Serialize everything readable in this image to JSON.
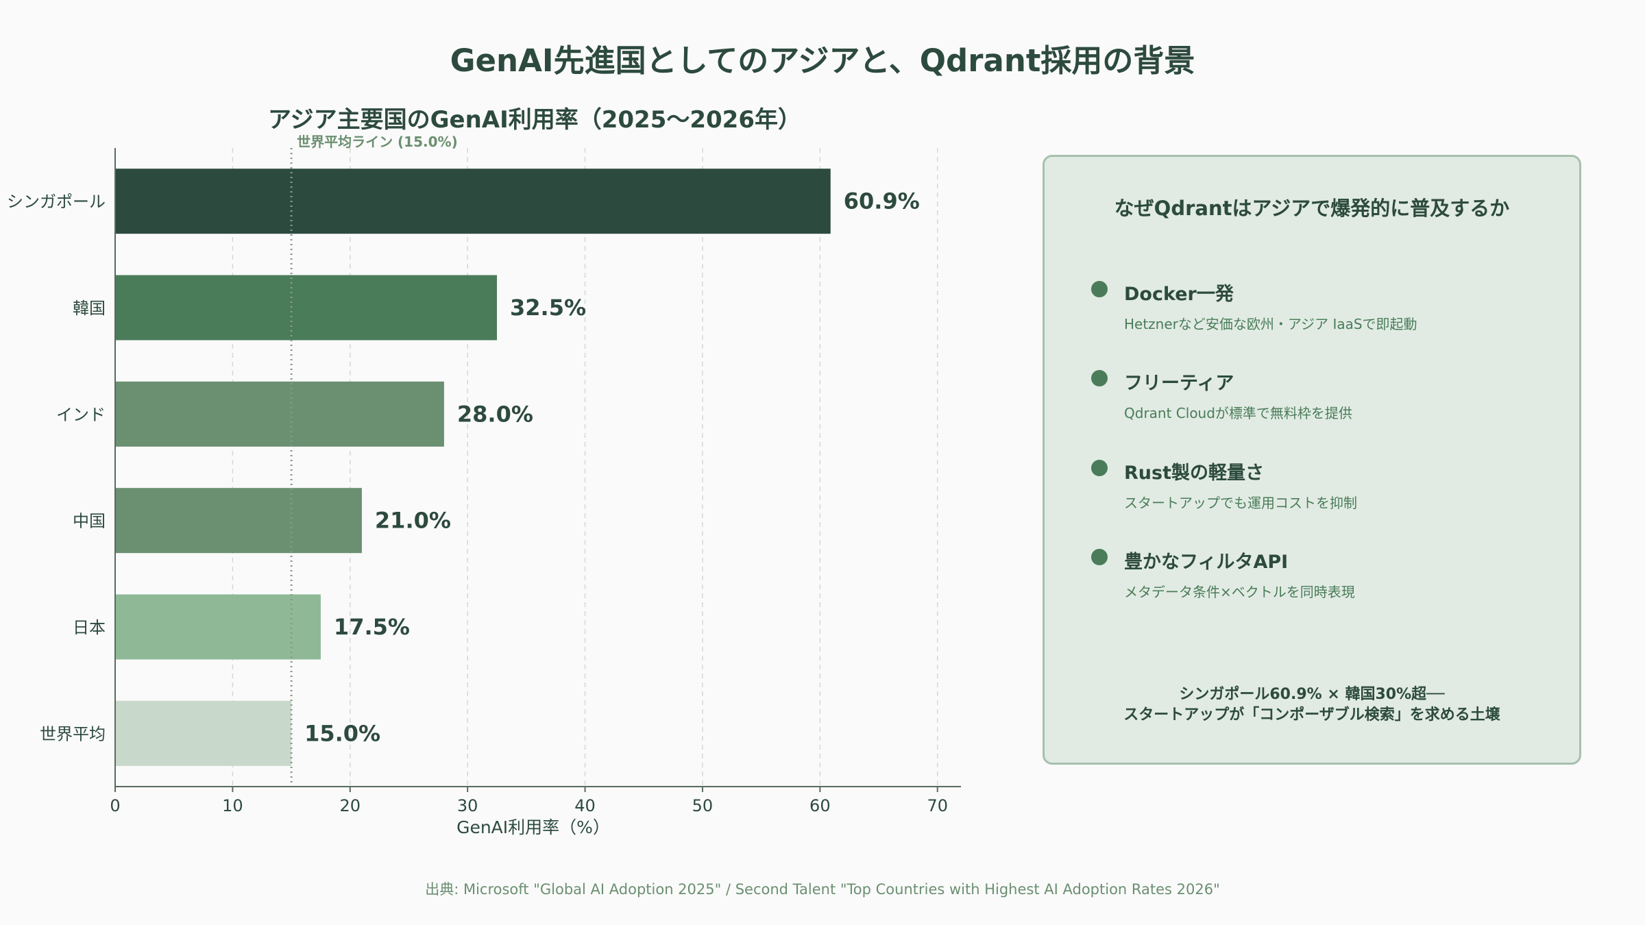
{
  "title": "GenAI先進国としてのアジアと、Qdrant採用の背景",
  "chart_data": {
    "type": "bar",
    "orientation": "horizontal",
    "title": "アジア主要国のGenAI利用率（2025〜2026年）",
    "xlabel": "GenAI利用率（%）",
    "ylabel": "",
    "xlim": [
      0,
      72
    ],
    "xticks": [
      0,
      10,
      20,
      30,
      40,
      50,
      60,
      70
    ],
    "grid": "vertical-dashed",
    "categories": [
      "シンガポール",
      "韓国",
      "インド",
      "中国",
      "日本",
      "世界平均"
    ],
    "values": [
      60.9,
      32.5,
      28.0,
      21.0,
      17.5,
      15.0
    ],
    "value_labels": [
      "60.9%",
      "32.5%",
      "28.0%",
      "21.0%",
      "17.5%",
      "15.0%"
    ],
    "colors": [
      "#2d4a3e",
      "#4a7c59",
      "#6b8f71",
      "#6b8f71",
      "#8fb996",
      "#c8d9cc"
    ],
    "reference_line": {
      "value": 15.0,
      "label": "世界平均ライン (15.0%)",
      "style": "dotted"
    }
  },
  "panel": {
    "title": "なぜQdrantはアジアで爆発的に普及するか",
    "items": [
      {
        "title": "Docker一発",
        "desc": "Hetznerなど安価な欧州・アジア IaaSで即起動"
      },
      {
        "title": "フリーティア",
        "desc": "Qdrant Cloudが標準で無料枠を提供"
      },
      {
        "title": "Rust製の軽量さ",
        "desc": "スタートアップでも運用コストを抑制"
      },
      {
        "title": "豊かなフィルタAPI",
        "desc": "メタデータ条件×ベクトルを同時表現"
      }
    ],
    "footer_line1": "シンガポール60.9% × 韓国30%超──",
    "footer_line2": "スタートアップが「コンポーザブル検索」を求める土壌"
  },
  "source": "出典: Microsoft \"Global AI Adoption 2025\" / Second Talent \"Top Countries with Highest AI Adoption Rates 2026\""
}
